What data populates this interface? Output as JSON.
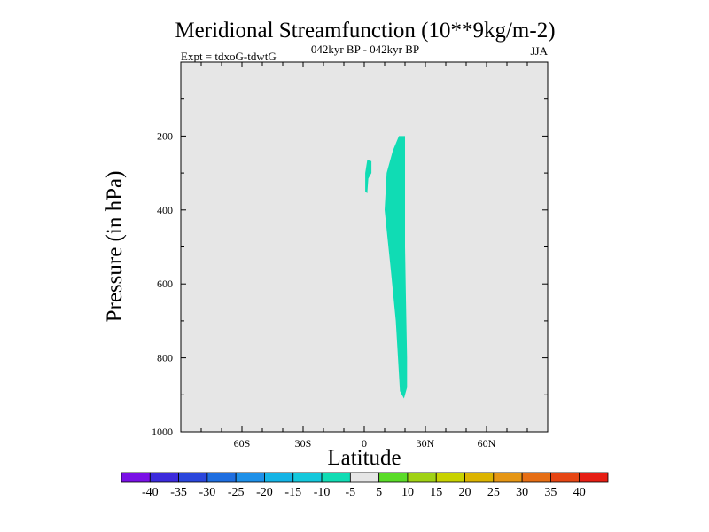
{
  "chart_data": {
    "type": "contour",
    "title": "Meridional Streamfunction (10**9kg/m-2)",
    "subtitle_left": "Expt = tdxoG-tdwtG",
    "subtitle_center": "042kyr BP - 042kyr BP",
    "subtitle_right": "JJA",
    "xlabel": "Latitude",
    "ylabel": "Pressure (in hPa)",
    "xlim": [
      -90,
      90
    ],
    "ylim": [
      0,
      1000
    ],
    "y_inverted": true,
    "x_ticks": [
      {
        "value": -60,
        "label": "60S"
      },
      {
        "value": -30,
        "label": "30S"
      },
      {
        "value": 0,
        "label": "0"
      },
      {
        "value": 30,
        "label": "30N"
      },
      {
        "value": 60,
        "label": "60N"
      }
    ],
    "y_ticks": [
      {
        "value": 200,
        "label": "200"
      },
      {
        "value": 400,
        "label": "400"
      },
      {
        "value": 600,
        "label": "600"
      },
      {
        "value": 800,
        "label": "800"
      },
      {
        "value": 1000,
        "label": "1000"
      }
    ],
    "background_color": "#e6e6e6",
    "contour_regions": [
      {
        "level": "-10 to -5",
        "color": "#10dcb4",
        "outline": [
          [
            17,
            200
          ],
          [
            20,
            200
          ],
          [
            20,
            350
          ],
          [
            20,
            500
          ],
          [
            20.5,
            650
          ],
          [
            21,
            800
          ],
          [
            21,
            880
          ],
          [
            19.5,
            910
          ],
          [
            17.5,
            890
          ],
          [
            15.5,
            700
          ],
          [
            13,
            560
          ],
          [
            10,
            400
          ],
          [
            11,
            300
          ],
          [
            14,
            240
          ],
          [
            17,
            200
          ]
        ]
      },
      {
        "level": "-10 to -5",
        "color": "#10dcb4",
        "outline": [
          [
            1.5,
            265
          ],
          [
            3.5,
            268
          ],
          [
            3.5,
            300
          ],
          [
            2,
            315
          ],
          [
            1.5,
            355
          ],
          [
            0.5,
            350
          ],
          [
            0.5,
            300
          ],
          [
            1.5,
            265
          ]
        ]
      }
    ],
    "colorbar": {
      "colors": [
        "#7a10e6",
        "#3c2adc",
        "#2a46dc",
        "#1e6ee0",
        "#1e90e8",
        "#14b4e6",
        "#14c8dc",
        "#10dcb4",
        "#e6e6e6",
        "#5adc28",
        "#a0d214",
        "#c8d200",
        "#dcb400",
        "#e69614",
        "#e66e14",
        "#e64614",
        "#e61e14"
      ],
      "labels": [
        "-40",
        "-35",
        "-30",
        "-25",
        "-20",
        "-15",
        "-10",
        "-5",
        "5",
        "10",
        "15",
        "20",
        "25",
        "30",
        "35",
        "40"
      ]
    }
  }
}
